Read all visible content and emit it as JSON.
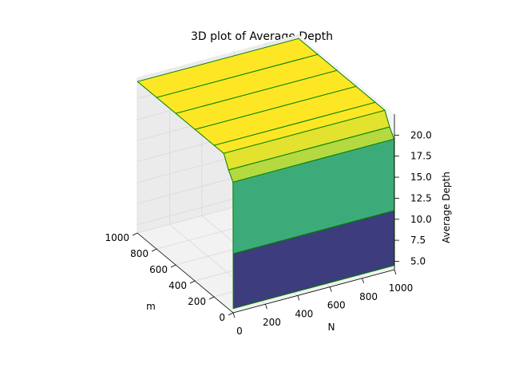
{
  "chart_data": {
    "type": "surface3d",
    "title": "3D plot of Average Depth",
    "xlabel": "m",
    "ylabel": "N",
    "zlabel": "Average Depth",
    "x_ticks": [
      "0",
      "200",
      "400",
      "600",
      "800",
      "1000"
    ],
    "y_ticks": [
      "0",
      "200",
      "400",
      "600",
      "800",
      "1000"
    ],
    "z_ticks": [
      "5.0",
      "7.5",
      "10.0",
      "12.5",
      "15.0",
      "17.5",
      "20.0"
    ],
    "xlim": [
      0,
      1000
    ],
    "ylim": [
      0,
      1000
    ],
    "zlim": [
      4,
      22.5
    ],
    "grid": true,
    "colormap": "viridis",
    "edge_color": "#008000",
    "colors": {
      "low": "#440154",
      "mid": "#21908d",
      "high": "#ece51b"
    },
    "surface": {
      "m": [
        1,
        2,
        3,
        50,
        100,
        200,
        400,
        600,
        800,
        1000
      ],
      "N": [
        1,
        1000
      ],
      "depth": [
        [
          4.5,
          4.5
        ],
        [
          11.0,
          11.0
        ],
        [
          19.5,
          19.5
        ],
        [
          20.5,
          20.5
        ],
        [
          22.0,
          22.0
        ],
        [
          22.0,
          22.0
        ],
        [
          22.0,
          22.0
        ],
        [
          22.0,
          22.0
        ],
        [
          22.0,
          22.0
        ],
        [
          22.0,
          22.0
        ]
      ]
    }
  }
}
